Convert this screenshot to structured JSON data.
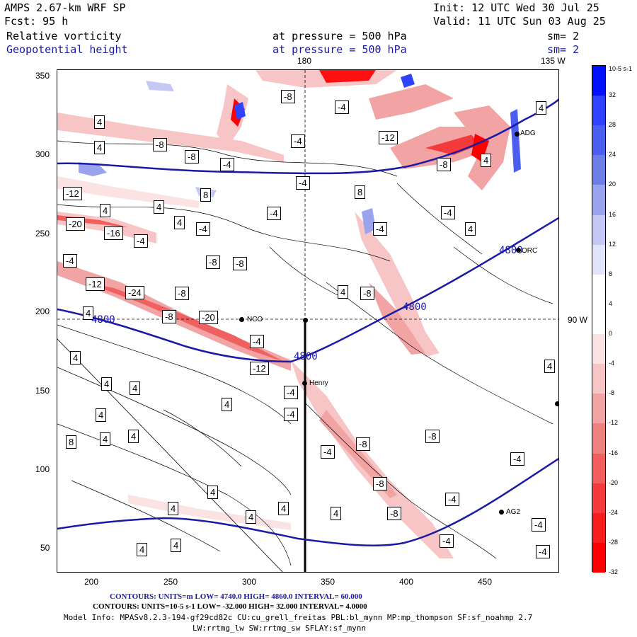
{
  "header": {
    "model": "AMPS 2.67-km WRF SP",
    "forecast": "Fcst:    95 h",
    "init": "Init: 12 UTC Wed 30 Jul 25",
    "valid": "Valid: 11 UTC Sun 03 Aug 25",
    "field1_name": "Relative vorticity",
    "field1_level": "at pressure =  500 hPa",
    "field1_smooth": "sm= 2",
    "field2_name": "Geopotential height",
    "field2_level": "at pressure =  500 hPa",
    "field2_smooth": "sm= 2"
  },
  "map": {
    "meridian_top_left": "180",
    "meridian_top_right": "135 W",
    "meridian_right": "90 W",
    "y_ticks": [
      "350",
      "300",
      "250",
      "200",
      "150",
      "100",
      "50"
    ],
    "x_ticks": [
      "200",
      "250",
      "300",
      "350",
      "400",
      "450"
    ],
    "height_contour_labels": [
      "4800",
      "4800",
      "4800",
      "4800"
    ],
    "vorticity_labels": [
      "4",
      "-8",
      "-4",
      "4",
      "-8",
      "-12",
      "4",
      "-8",
      "-4",
      "-4",
      "-8",
      "-12",
      "-4",
      "8",
      "4",
      "-20",
      "-16",
      "-4",
      "4",
      "-4",
      "4",
      "-4",
      "-8",
      "-8",
      "-4",
      "-12",
      "-24",
      "-8",
      "4",
      "-8",
      "-20",
      "-4",
      "-12",
      "4",
      "4",
      "4",
      "4",
      "4",
      "-4",
      "-4",
      "8",
      "4",
      "4",
      "-4",
      "-8",
      "-8",
      "4",
      "4",
      "4",
      "4",
      "4",
      "-8",
      "-4",
      "-4",
      "-4",
      "-4",
      "4",
      "-4",
      "-4",
      "4",
      "-8",
      "8",
      "4",
      "-8",
      "4",
      "4",
      "4",
      "-4"
    ],
    "stations": [
      {
        "name": "NCO"
      },
      {
        "name": "Henry"
      },
      {
        "name": "AG2"
      },
      {
        "name": "ORC"
      },
      {
        "name": "ADG"
      }
    ]
  },
  "colorbar": {
    "unit": "10-5 s-1",
    "labels": [
      "32",
      "28",
      "24",
      "20",
      "16",
      "12",
      "8",
      "4",
      "0",
      "-4",
      "-8",
      "-12",
      "-16",
      "-20",
      "-24",
      "-28",
      "-32"
    ],
    "colors": [
      "#0010ff",
      "#2e42ff",
      "#4c5ef0",
      "#6f7de6",
      "#9aa3ee",
      "#c3c8f5",
      "#e1e4fa",
      "#ffffff",
      "#ffffff",
      "#fbe3e3",
      "#f7c5c5",
      "#f2a3a3",
      "#ef8181",
      "#f25e5e",
      "#f43a3a",
      "#f81d1d",
      "#ff0000"
    ]
  },
  "footer": {
    "line1": "CONTOURS:  UNITS=m  LOW=  4740.0         HIGH=  4860.0        INTERVAL=   60.000",
    "line2": "CONTOURS:  UNITS=10-5 s-1  LOW=  -32.000        HIGH=  32.000        INTERVAL=   4.0000",
    "line3": "Model Info: MPASv8.2.3-194-gf29cd82c CU:cu_grell_freitas PBL:bl_mynn MP:mp_thompson SF:sf_noahmp 2.7",
    "line4": "LW:rrtmg_lw SW:rrtmg_sw SFLAY:sf_mynn"
  }
}
